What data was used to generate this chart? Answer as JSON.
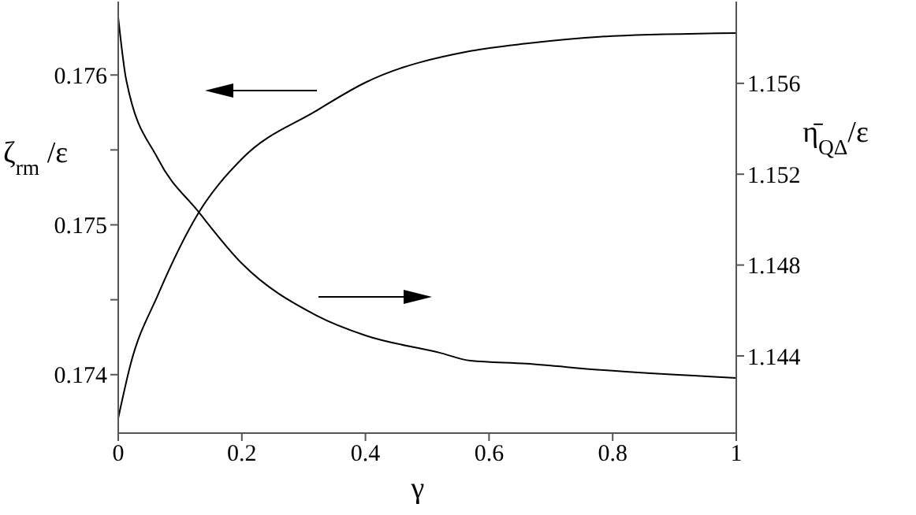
{
  "chart_data": {
    "type": "line",
    "xlabel": "γ",
    "ylabel": "ζ$_{rm}$ /ε",
    "y2label": "η̄$_{QΔ}$/ε",
    "xlim": [
      0,
      1
    ],
    "xticks": [
      0,
      0.2,
      0.4,
      0.6,
      0.8,
      1
    ],
    "ylim": [
      0.17361,
      0.17649
    ],
    "yticks": [
      0.174,
      {
        "value": 0.1745,
        "label": null
      },
      0.175,
      {
        "value": 0.1755,
        "label": null
      },
      0.176
    ],
    "y2lim": [
      1.1406,
      1.1596
    ],
    "y2ticks": [
      1.144,
      1.148,
      1.152,
      1.156
    ],
    "marker": "none",
    "line_style": "solid",
    "series": [
      {
        "color": "#000000",
        "x": [
          0,
          0.02,
          0.064,
          0.13,
          0.2,
          0.32,
          0.4,
          0.57,
          0.66,
          0.8,
          1
        ],
        "values": [
          0.17371,
          0.17407,
          0.17453,
          0.17508,
          0.17544,
          0.17576,
          0.17595,
          0.17616,
          0.17621,
          0.17626,
          0.17628
        ]
      },
      {
        "color": "#000000",
        "axis": "y2",
        "x": [
          0,
          0.013,
          0.064,
          0.13,
          0.2,
          0.32,
          0.4,
          0.52,
          0.57,
          0.66,
          0.78,
          1
        ],
        "values": [
          1.1589,
          1.15614,
          1.15269,
          1.15034,
          1.14807,
          1.14579,
          1.1449,
          1.14414,
          1.14379,
          1.14366,
          1.14338,
          1.14303
        ]
      }
    ]
  }
}
